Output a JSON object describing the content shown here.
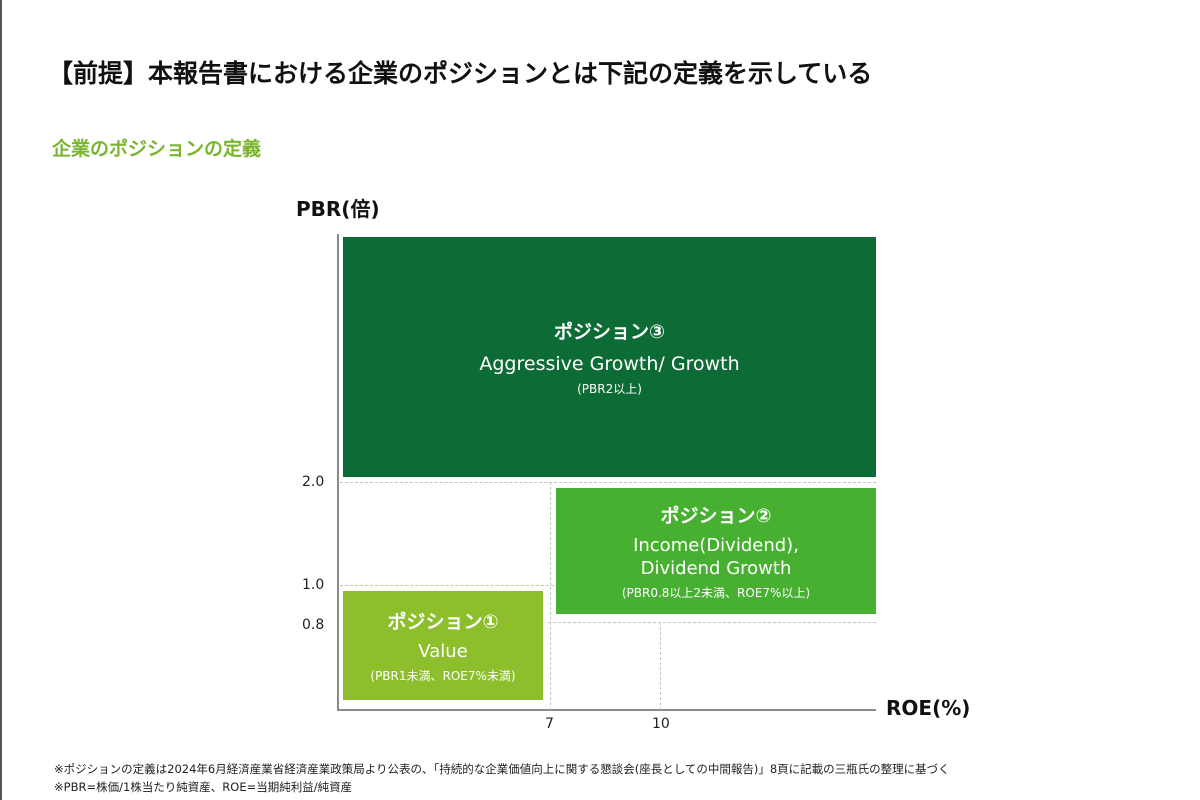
{
  "title": "【前提】本報告書における企業のポジションとは下記の定義を示している",
  "subtitle": "企業のポジションの定義",
  "chart": {
    "y_axis_title": "PBR(倍)",
    "x_axis_title": "ROE(%)",
    "y_ticks": [
      "2.0",
      "1.0",
      "0.8"
    ],
    "x_ticks": [
      "7",
      "10"
    ]
  },
  "positions": [
    {
      "name": "ポジション③",
      "desc_lines": [
        "Aggressive Growth/ Growth"
      ],
      "cond": "(PBR2以上)",
      "color": "#0d6b35"
    },
    {
      "name": "ポジション②",
      "desc_lines": [
        "Income(Dividend),",
        "Dividend Growth"
      ],
      "cond": "(PBR0.8以上2未満、ROE7%以上)",
      "color": "#48b031"
    },
    {
      "name": "ポジション①",
      "desc_lines": [
        "Value"
      ],
      "cond": "(PBR1未満、ROE7%未満)",
      "color": "#8dbf2c"
    }
  ],
  "footnotes": [
    "※ポジションの定義は2024年6月経済産業省経済産業政策局より公表の、「持続的な企業価値向上に関する懇談会(座長としての中間報告)」8頁に記載の三瓶氏の整理に基づく",
    "※PBR=株価/1株当たり純資産、ROE=当期純利益/純資産"
  ]
}
